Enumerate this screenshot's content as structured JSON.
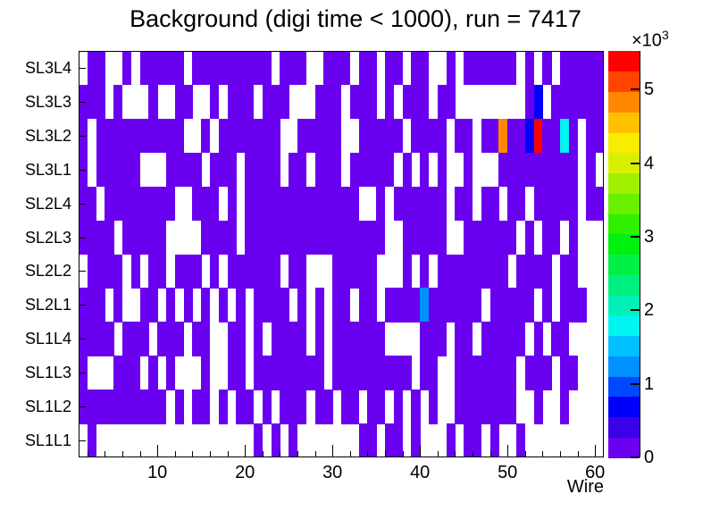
{
  "title": "Background (digi time < 1000), run = 7417",
  "chart_data": {
    "type": "heatmap",
    "title": "Background (digi time < 1000), run = 7417",
    "xlabel": "Wire",
    "x_range": [
      1,
      61
    ],
    "x_major_ticks": [
      10,
      20,
      30,
      40,
      50,
      60
    ],
    "x_minor_tick_step": 2,
    "y_categories_top_to_bottom": [
      "SL3L4",
      "SL3L3",
      "SL3L2",
      "SL3L1",
      "SL2L4",
      "SL2L3",
      "SL2L2",
      "SL2L1",
      "SL1L4",
      "SL1L3",
      "SL1L2",
      "SL1L1"
    ],
    "z_axis": {
      "max": 5525,
      "tick_values": [
        0,
        1000,
        2000,
        3000,
        4000,
        5000
      ],
      "tick_labels": [
        "0",
        "1",
        "2",
        "3",
        "4",
        "5"
      ],
      "exponent_label": {
        "base": "×10",
        "exp": "3"
      }
    },
    "palette_bottom_to_top": [
      "#6a00f0",
      "#3c00e6",
      "#0000fa",
      "#0048ff",
      "#0090ff",
      "#00c0ff",
      "#00f4f0",
      "#00f0b8",
      "#00f080",
      "#00f048",
      "#00f010",
      "#30f000",
      "#68f000",
      "#a0f000",
      "#d8f000",
      "#f8ec00",
      "#ffc000",
      "#ff8800",
      "#ff4400",
      "#ff0000"
    ],
    "cell_legend": {
      "1": "occupied bin, ~100 entries (lowest color band, violet)",
      "0": "empty bin (0 entries, white)"
    },
    "low_cell_value": 100,
    "rows_top_to_bottom": [
      {
        "label": "SL3L4",
        "cells": "011001011111011111111101110011101101101100101111110101011111"
      },
      {
        "label": "SL3L3",
        "cells": "111010001001100101110111000111011101011101100000000110111111"
      },
      {
        "label": "SL3L2",
        "cells": "101111111111001011111110011111001111101111011011111111111011"
      },
      {
        "label": "SL3L1",
        "cells": "101111100011110111011110110111011111010101001000111111111010"
      },
      {
        "label": "SL2L4",
        "cells": "110111111110011101011111111111110010111111011011011011111011"
      },
      {
        "label": "SL2L3",
        "cells": "111101111100001111011111111111111110011111001111110101101000"
      },
      {
        "label": "SL2L2",
        "cells": "011110101101110101111110110001111100010101111111101111011000"
      },
      {
        "label": "SL2L1",
        "cells": "111010011010101010101111010101101101111111111101111101011100"
      },
      {
        "label": "SL1L4",
        "cells": "111101110111011001101011110101111110000111011011111010110000"
      },
      {
        "label": "SL1L3",
        "cells": "100011101010001001101111111101111111110110011111110111011000"
      },
      {
        "label": "SL1L2",
        "cells": "111111111101011010110101110110110110101010011111110010010000"
      },
      {
        "label": "SL1L1",
        "cells": "010000000000000000001010100000001101101000101101001000000000"
      }
    ],
    "hot_cells": [
      {
        "row": "SL3L3",
        "wire": 53,
        "value": 700,
        "color_seen": "blue"
      },
      {
        "row": "SL3L2",
        "wire": 49,
        "value": 4800,
        "color_seen": "orange"
      },
      {
        "row": "SL3L2",
        "wire": 52,
        "value": 700,
        "color_seen": "blue"
      },
      {
        "row": "SL3L2",
        "wire": 53,
        "value": 5400,
        "color_seen": "red (max)"
      },
      {
        "row": "SL3L2",
        "wire": 56,
        "value": 1800,
        "color_seen": "cyan"
      },
      {
        "row": "SL2L1",
        "wire": 40,
        "value": 1250,
        "color_seen": "azure blue"
      }
    ],
    "layout": {
      "grid": "off",
      "legend_position": "colorbar right",
      "frame_color": "#000000",
      "background": "#ffffff"
    }
  }
}
